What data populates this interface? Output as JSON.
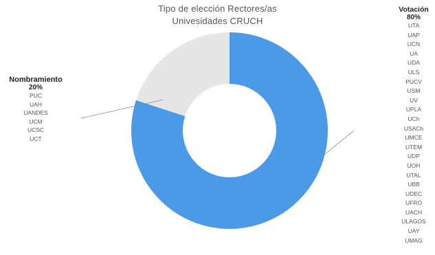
{
  "chart_data": {
    "type": "pie",
    "variant": "donut",
    "title_lines": [
      "Tipo de elección Rectores/as",
      "Univesidades CRUCH"
    ],
    "slices": [
      {
        "name": "Votación",
        "percent_label": "80%",
        "value": 80,
        "color": "#4a9ae8",
        "legend_position": "right",
        "items": [
          "UTA",
          "UAP",
          "UCN",
          "UA",
          "UDA",
          "ULS",
          "PUCV",
          "USM",
          "UV",
          "UPLA",
          "UCh",
          "USACh",
          "UMCE",
          "UTEM",
          "UDP",
          "UOH",
          "UTAL",
          "UBB",
          "UDEC",
          "UFRO",
          "UACH",
          "ULAGOS",
          "UAY",
          "UMAG"
        ]
      },
      {
        "name": "Nombramiento",
        "percent_label": "20%",
        "value": 20,
        "color": "#e6e6e6",
        "legend_position": "left",
        "items": [
          "PUC",
          "UAH",
          "UANDES",
          "UCM",
          "UCSC",
          "UCT"
        ]
      }
    ],
    "legend": "none"
  }
}
